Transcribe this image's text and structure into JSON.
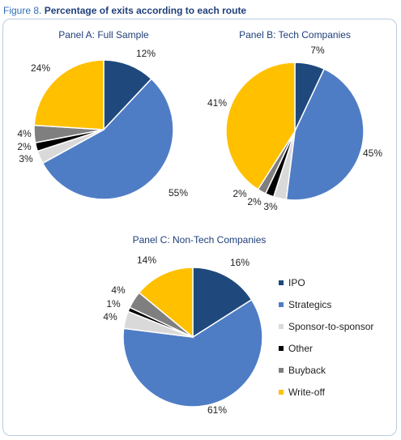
{
  "figure": {
    "label": "Figure 8.",
    "title": "Percentage of exits according to each route"
  },
  "colors": {
    "IPO": "#1f497d",
    "Strategics": "#4f7dc5",
    "Sponsor-to-sponsor": "#d9d9d9",
    "Other": "#000000",
    "Buyback": "#7f7f7f",
    "Write-off": "#ffc000"
  },
  "legend": [
    "IPO",
    "Strategics",
    "Sponsor-to-sponsor",
    "Other",
    "Buyback",
    "Write-off"
  ],
  "chart_data": [
    {
      "type": "pie",
      "title": "Panel A: Full Sample",
      "categories": [
        "IPO",
        "Strategics",
        "Sponsor-to-sponsor",
        "Other",
        "Buyback",
        "Write-off"
      ],
      "values": [
        12,
        55,
        3,
        2,
        4,
        24
      ],
      "labels": [
        "12%",
        "55%",
        "3%",
        "2%",
        "4%",
        "24%"
      ]
    },
    {
      "type": "pie",
      "title": "Panel B: Tech Companies",
      "categories": [
        "IPO",
        "Strategics",
        "Sponsor-to-sponsor",
        "Other",
        "Buyback",
        "Write-off"
      ],
      "values": [
        7,
        45,
        3,
        2,
        2,
        41
      ],
      "labels": [
        "7%",
        "45%",
        "3%",
        "2%",
        "2%",
        "41%"
      ]
    },
    {
      "type": "pie",
      "title": "Panel C: Non-Tech Companies",
      "categories": [
        "IPO",
        "Strategics",
        "Sponsor-to-sponsor",
        "Other",
        "Buyback",
        "Write-off"
      ],
      "values": [
        16,
        61,
        4,
        1,
        4,
        14
      ],
      "labels": [
        "16%",
        "61%",
        "4%",
        "1%",
        "4%",
        "14%"
      ],
      "legend_position": "right"
    }
  ]
}
